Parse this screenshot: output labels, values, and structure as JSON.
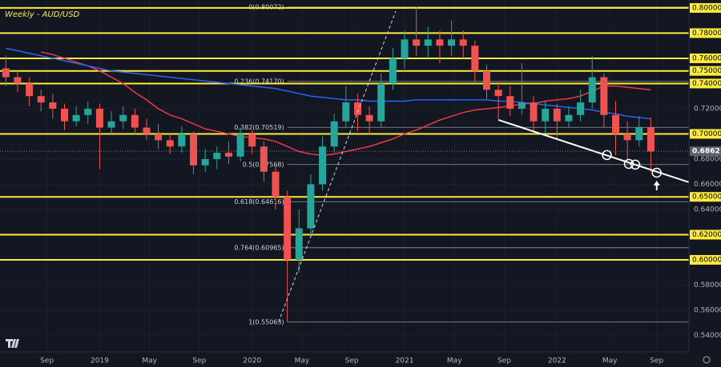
{
  "chart_data": {
    "type": "candlestick",
    "title": "Weekly - AUD/USD",
    "x": [
      2,
      6,
      10,
      14,
      18,
      22,
      26,
      30,
      34,
      38,
      42,
      46,
      50,
      54,
      58,
      62,
      66,
      70,
      74,
      78,
      82,
      86,
      90,
      94,
      98,
      102,
      106,
      110,
      114,
      118,
      122,
      126,
      130,
      134,
      138,
      142,
      146,
      150,
      154,
      158,
      162,
      166,
      170,
      174,
      178,
      182,
      186,
      190,
      194,
      198,
      202,
      206,
      210,
      214,
      218,
      222
    ],
    "open": [
      0.752,
      0.745,
      0.74,
      0.73,
      0.725,
      0.72,
      0.71,
      0.715,
      0.72,
      0.705,
      0.71,
      0.715,
      0.705,
      0.7,
      0.695,
      0.69,
      0.7,
      0.675,
      0.68,
      0.685,
      0.682,
      0.7,
      0.69,
      0.67,
      0.65,
      0.6,
      0.625,
      0.66,
      0.69,
      0.71,
      0.725,
      0.715,
      0.71,
      0.74,
      0.76,
      0.775,
      0.77,
      0.775,
      0.77,
      0.775,
      0.77,
      0.75,
      0.735,
      0.73,
      0.72,
      0.725,
      0.71,
      0.72,
      0.71,
      0.715,
      0.725,
      0.745,
      0.715,
      0.7,
      0.695,
      0.705
    ],
    "high": [
      0.762,
      0.75,
      0.745,
      0.735,
      0.732,
      0.724,
      0.722,
      0.726,
      0.724,
      0.718,
      0.722,
      0.72,
      0.712,
      0.708,
      0.7,
      0.706,
      0.702,
      0.688,
      0.69,
      0.694,
      0.705,
      0.703,
      0.694,
      0.675,
      0.655,
      0.64,
      0.668,
      0.698,
      0.716,
      0.738,
      0.732,
      0.722,
      0.748,
      0.768,
      0.782,
      0.801,
      0.785,
      0.782,
      0.79,
      0.782,
      0.774,
      0.755,
      0.742,
      0.738,
      0.756,
      0.73,
      0.726,
      0.724,
      0.722,
      0.735,
      0.762,
      0.748,
      0.726,
      0.71,
      0.714,
      0.713
    ],
    "low": [
      0.738,
      0.733,
      0.722,
      0.718,
      0.712,
      0.703,
      0.706,
      0.708,
      0.672,
      0.7,
      0.704,
      0.7,
      0.695,
      0.688,
      0.684,
      0.685,
      0.668,
      0.67,
      0.672,
      0.676,
      0.678,
      0.684,
      0.662,
      0.64,
      0.551,
      0.59,
      0.618,
      0.655,
      0.685,
      0.705,
      0.702,
      0.7,
      0.705,
      0.735,
      0.752,
      0.762,
      0.76,
      0.756,
      0.762,
      0.76,
      0.742,
      0.728,
      0.712,
      0.714,
      0.715,
      0.7,
      0.7,
      0.696,
      0.705,
      0.71,
      0.72,
      0.705,
      0.683,
      0.68,
      0.69,
      0.67
    ],
    "close": [
      0.745,
      0.74,
      0.73,
      0.725,
      0.72,
      0.71,
      0.715,
      0.72,
      0.705,
      0.71,
      0.715,
      0.705,
      0.7,
      0.695,
      0.69,
      0.7,
      0.675,
      0.68,
      0.685,
      0.682,
      0.7,
      0.69,
      0.67,
      0.65,
      0.6,
      0.625,
      0.66,
      0.69,
      0.71,
      0.725,
      0.715,
      0.71,
      0.74,
      0.76,
      0.775,
      0.77,
      0.775,
      0.77,
      0.775,
      0.77,
      0.75,
      0.735,
      0.73,
      0.72,
      0.725,
      0.71,
      0.72,
      0.71,
      0.715,
      0.725,
      0.745,
      0.715,
      0.7,
      0.695,
      0.705,
      0.686
    ],
    "up_color": "#26a69a",
    "down_color": "#ef5350",
    "moving_averages": [
      {
        "color": "#f23645",
        "values": [
          null,
          null,
          null,
          0.765,
          0.763,
          0.76,
          0.757,
          0.754,
          0.75,
          0.745,
          0.74,
          0.733,
          0.727,
          0.72,
          0.715,
          0.712,
          0.708,
          0.704,
          0.702,
          0.7,
          0.698,
          0.697,
          0.696,
          0.694,
          0.69,
          0.686,
          0.684,
          0.683,
          0.684,
          0.686,
          0.688,
          0.69,
          0.693,
          0.696,
          0.7,
          0.703,
          0.707,
          0.711,
          0.714,
          0.717,
          0.719,
          0.72,
          0.721,
          0.722,
          0.724,
          0.724,
          0.726,
          0.727,
          0.728,
          0.73,
          0.734,
          0.738,
          0.738,
          0.737,
          0.736,
          0.735
        ]
      },
      {
        "color": "#2962ff",
        "values": [
          0.768,
          0.766,
          0.764,
          0.762,
          0.76,
          0.758,
          0.756,
          0.754,
          0.752,
          0.75,
          0.749,
          0.748,
          0.747,
          0.746,
          0.745,
          0.744,
          0.743,
          0.742,
          0.741,
          0.74,
          0.739,
          0.738,
          0.737,
          0.736,
          0.734,
          0.732,
          0.73,
          0.729,
          0.728,
          0.727,
          0.727,
          0.726,
          0.726,
          0.726,
          0.726,
          0.727,
          0.727,
          0.727,
          0.727,
          0.727,
          0.727,
          0.727,
          0.726,
          0.726,
          0.725,
          0.724,
          0.723,
          0.722,
          0.721,
          0.72,
          0.719,
          0.717,
          0.716,
          0.714,
          0.713,
          0.712
        ]
      }
    ],
    "xlim": [
      0,
      235
    ],
    "ylim": [
      0.527,
      0.8063
    ],
    "xticks": [
      {
        "value": 16,
        "label": "Sep"
      },
      {
        "value": 34,
        "label": "2019"
      },
      {
        "value": 51,
        "label": "May"
      },
      {
        "value": 68,
        "label": "Sep"
      },
      {
        "value": 86,
        "label": "2020"
      },
      {
        "value": 103,
        "label": "May"
      },
      {
        "value": 120,
        "label": "Sep"
      },
      {
        "value": 138,
        "label": "2021"
      },
      {
        "value": 155,
        "label": "May"
      },
      {
        "value": 172,
        "label": "Sep"
      },
      {
        "value": 190,
        "label": "2022"
      },
      {
        "value": 208,
        "label": "May"
      },
      {
        "value": 224,
        "label": "Sep"
      }
    ],
    "yticks": [
      {
        "value": 0.54,
        "label": "0.54000"
      },
      {
        "value": 0.56,
        "label": "0.56000"
      },
      {
        "value": 0.58,
        "label": "0.58000"
      },
      {
        "value": 0.64,
        "label": "0.64000"
      },
      {
        "value": 0.66,
        "label": "0.66000"
      },
      {
        "value": 0.68,
        "label": "0.68000"
      },
      {
        "value": 0.72,
        "label": "0.72000"
      }
    ],
    "levels": [
      {
        "value": 0.8,
        "label": "0.80000"
      },
      {
        "value": 0.78,
        "label": "0.78000"
      },
      {
        "value": 0.76,
        "label": "0.76000"
      },
      {
        "value": 0.75,
        "label": "0.75000"
      },
      {
        "value": 0.74,
        "label": "0.74000"
      },
      {
        "value": 0.7,
        "label": "0.70000"
      },
      {
        "value": 0.65,
        "label": "0.65000"
      },
      {
        "value": 0.62,
        "label": "0.62000"
      },
      {
        "value": 0.6,
        "label": "0.60000"
      }
    ],
    "level_color": "#ffeb3b",
    "fibonacci": [
      {
        "value": 0.80072,
        "label": "0(0.80072)"
      },
      {
        "value": 0.7417,
        "label": "0.236(0.74170)"
      },
      {
        "value": 0.70519,
        "label": "0.382(0.70519)"
      },
      {
        "value": 0.67568,
        "label": "0.5(0.67568)"
      },
      {
        "value": 0.64616,
        "label": "0.618(0.64616)"
      },
      {
        "value": 0.60965,
        "label": "0.764(0.60965)"
      },
      {
        "value": 0.55063,
        "label": "1(0.55063)"
      }
    ],
    "last_price": {
      "value": 0.68621,
      "label": "0.68621"
    },
    "trendline": {
      "x": [
        170,
        235
      ],
      "y": [
        0.7111,
        0.6616
      ]
    },
    "channel_line": {
      "x": [
        95,
        135
      ],
      "y": [
        0.5506,
        0.7975
      ]
    },
    "touches": {
      "x": [
        207,
        214.5,
        216.7,
        224
      ],
      "y": [
        0.6832,
        0.6762,
        0.6756,
        0.6692
      ]
    }
  }
}
